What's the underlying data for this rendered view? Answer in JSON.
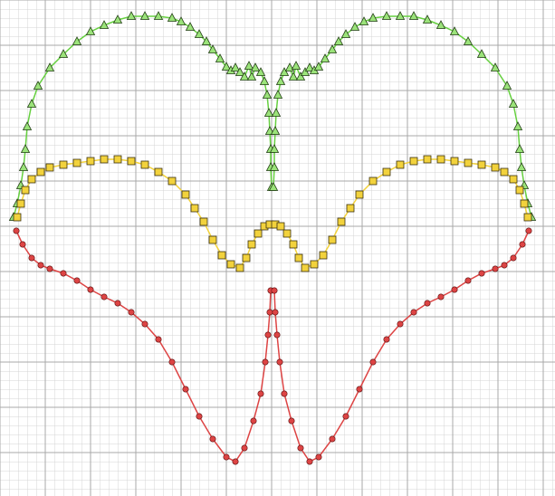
{
  "chart_data": {
    "type": "scatter",
    "xlim": [
      0,
      61.3
    ],
    "ylim": [
      54.8,
      0
    ],
    "xticks": [
      0,
      5,
      10,
      15,
      20,
      25,
      30,
      35,
      40,
      45,
      50,
      55,
      60
    ],
    "yticks": [
      0,
      5,
      10,
      15,
      20,
      25,
      30,
      35,
      40,
      45,
      50
    ],
    "grid": true,
    "series": [
      {
        "color": "#66d040",
        "marker": "triangle",
        "x": [
          1.5,
          1.9,
          2.3,
          2.6,
          2.8,
          3.0,
          3.5,
          4.2,
          5.5,
          7.0,
          8.5,
          10.0,
          11.5,
          13.0,
          14.5,
          16.0,
          17.5,
          19.0,
          20.0,
          21.0,
          22.0,
          22.8,
          23.5,
          24.3,
          25.0,
          25.5,
          26.0,
          26.5,
          27.0,
          27.5,
          27.8,
          28.2,
          28.8,
          29.2,
          29.5,
          29.7,
          29.8,
          29.9,
          29.9,
          30.0,
          30.2,
          30.3,
          30.3,
          30.4,
          30.5,
          30.7,
          31.0,
          31.4,
          32.0,
          32.4,
          32.7,
          33.2,
          33.7,
          34.2,
          34.7,
          35.2,
          35.9,
          36.7,
          37.4,
          38.2,
          39.2,
          40.2,
          41.2,
          42.7,
          44.2,
          45.7,
          47.2,
          48.7,
          50.2,
          51.7,
          53.2,
          54.7,
          56.0,
          56.7,
          57.2,
          57.4,
          57.6,
          57.9,
          58.3,
          58.7
        ],
        "values": [
          24.0,
          22.5,
          20.5,
          18.5,
          16.5,
          14.0,
          11.5,
          9.5,
          7.5,
          6.0,
          4.6,
          3.5,
          2.8,
          2.2,
          1.8,
          1.8,
          1.8,
          2.0,
          2.4,
          3.0,
          3.8,
          4.6,
          5.5,
          6.5,
          7.4,
          7.8,
          7.5,
          8.0,
          8.5,
          7.3,
          8.5,
          7.5,
          8.0,
          9.0,
          10.5,
          12.5,
          14.5,
          16.5,
          18.5,
          20.7,
          20.7,
          18.5,
          16.5,
          14.5,
          12.5,
          10.5,
          9.0,
          8.0,
          7.5,
          8.5,
          7.3,
          8.5,
          8.0,
          7.5,
          7.8,
          7.4,
          6.5,
          5.5,
          4.6,
          3.8,
          3.0,
          2.4,
          2.0,
          1.8,
          1.8,
          1.8,
          2.2,
          2.8,
          3.5,
          4.6,
          6.0,
          7.5,
          9.5,
          11.5,
          14.0,
          16.5,
          18.5,
          20.5,
          22.5,
          24.0
        ]
      },
      {
        "color": "#f2d23c",
        "marker": "square",
        "x": [
          1.9,
          2.3,
          2.8,
          3.5,
          4.5,
          5.5,
          7.0,
          8.5,
          10.0,
          11.5,
          13.0,
          14.5,
          16.0,
          17.5,
          19.0,
          20.5,
          21.5,
          22.5,
          23.5,
          24.5,
          25.5,
          26.5,
          27.2,
          27.8,
          28.5,
          29.2,
          29.8,
          30.4,
          31.0,
          31.7,
          32.4,
          33.0,
          33.7,
          34.7,
          35.7,
          36.7,
          37.7,
          38.7,
          39.7,
          41.2,
          42.7,
          44.2,
          45.7,
          47.2,
          48.7,
          50.2,
          51.7,
          53.2,
          54.7,
          55.7,
          56.7,
          57.4,
          57.9,
          58.3
        ],
        "values": [
          24.0,
          22.5,
          21.0,
          19.8,
          19.0,
          18.5,
          18.2,
          18.0,
          17.8,
          17.6,
          17.6,
          17.8,
          18.2,
          19.0,
          20.0,
          21.5,
          23.0,
          24.5,
          26.5,
          28.2,
          29.2,
          29.6,
          28.5,
          27.0,
          25.8,
          25.0,
          24.8,
          24.8,
          25.0,
          25.8,
          27.0,
          28.5,
          29.6,
          29.2,
          28.2,
          26.5,
          24.5,
          23.0,
          21.5,
          20.0,
          19.0,
          18.2,
          17.8,
          17.6,
          17.6,
          17.8,
          18.0,
          18.2,
          18.5,
          19.0,
          19.8,
          21.0,
          22.5,
          24.0
        ]
      },
      {
        "color": "#dd4444",
        "marker": "circle",
        "x": [
          1.8,
          2.5,
          3.5,
          4.5,
          5.5,
          7.0,
          8.5,
          10.0,
          11.5,
          13.0,
          14.5,
          16.0,
          17.5,
          19.0,
          20.5,
          22.0,
          23.5,
          25.0,
          26.0,
          27.0,
          28.0,
          28.8,
          29.3,
          29.6,
          29.8,
          29.9,
          30.3,
          30.4,
          30.6,
          30.9,
          31.4,
          32.2,
          33.2,
          34.2,
          35.2,
          36.7,
          38.2,
          39.7,
          41.2,
          42.7,
          44.2,
          45.7,
          47.2,
          48.7,
          50.2,
          51.7,
          53.2,
          54.7,
          55.7,
          56.7,
          57.7,
          58.4
        ],
        "values": [
          25.5,
          27.0,
          28.5,
          29.3,
          29.7,
          30.2,
          31.0,
          32.0,
          32.8,
          33.5,
          34.5,
          35.8,
          37.5,
          40.0,
          43.0,
          46.0,
          48.5,
          50.5,
          51.0,
          49.5,
          46.5,
          43.5,
          40.0,
          37.0,
          34.5,
          32.1,
          32.1,
          34.5,
          37.0,
          40.0,
          43.5,
          46.5,
          49.5,
          51.0,
          50.5,
          48.5,
          46.0,
          43.0,
          40.0,
          37.5,
          35.8,
          34.5,
          33.5,
          32.8,
          32.0,
          31.0,
          30.2,
          29.7,
          29.3,
          28.5,
          27.0,
          25.5
        ]
      }
    ]
  }
}
